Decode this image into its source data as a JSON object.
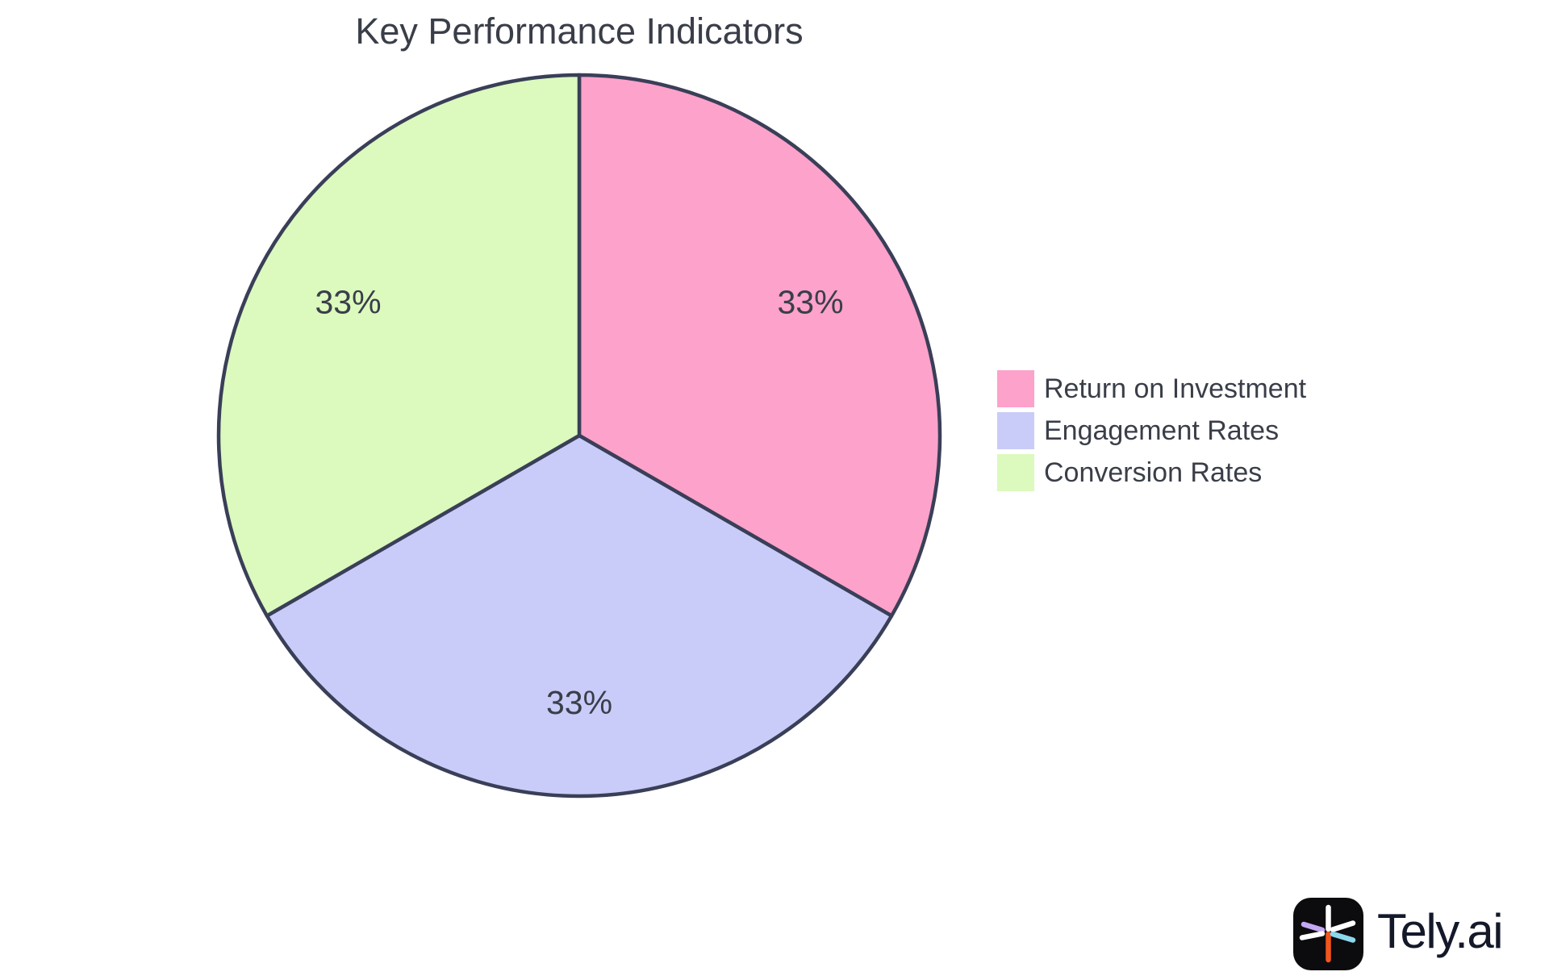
{
  "chart_data": {
    "type": "pie",
    "title": "Key Performance Indicators",
    "categories": [
      "Return on Investment",
      "Engagement Rates",
      "Conversion Rates"
    ],
    "values": [
      33.33,
      33.33,
      33.33
    ],
    "slice_labels": [
      "33%",
      "33%",
      "33%"
    ],
    "colors": [
      "#FDA2CA",
      "#C9CCF8",
      "#DCF9BE"
    ],
    "slice_border_color": "#3A3F58",
    "slice_border_width": 4.5,
    "start_angle_deg": 90,
    "direction": "clockwise",
    "label_radius_fraction": 0.74,
    "label_color": "#3A3E4A",
    "legend_position": "right",
    "background": "#FFFFFF"
  },
  "watermark": {
    "text": "Tely.ai",
    "icon_bg": "#0C0C0E",
    "text_color": "#14192A",
    "spoke_colors": {
      "top": "#FFFFFF",
      "upper_left": "#C5A9F3",
      "lower_left": "#FFFFFF",
      "upper_right": "#FFFFFF",
      "lower_right": "#8BD8EC",
      "bottom": "#F2561D"
    }
  }
}
